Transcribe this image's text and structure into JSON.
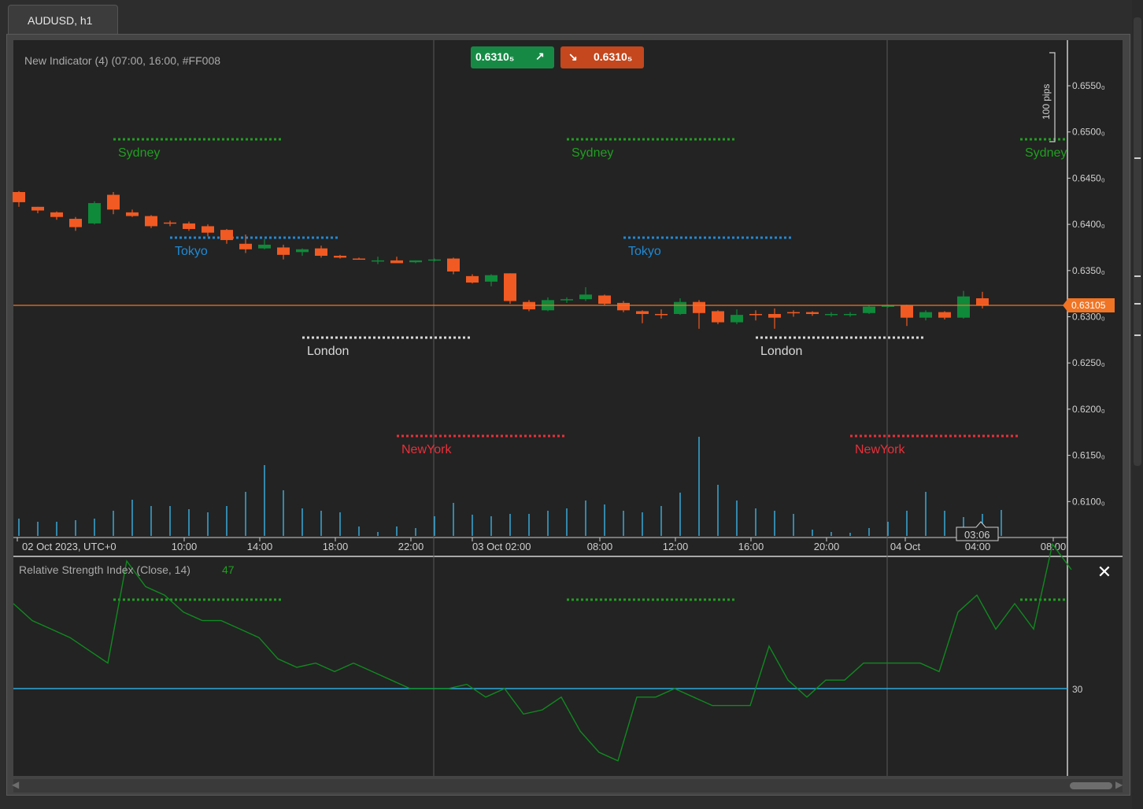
{
  "tab": {
    "label": "AUDUSD, h1"
  },
  "main_chart": {
    "indicator_label": "New Indicator (4) (07:00, 16:00, #FF008",
    "buy_price": "0.6310₅",
    "sell_price": "0.6310₅",
    "pips_label": "100 pips",
    "current_price_tag": "0.63105",
    "price_axis": [
      "0.6550₀",
      "0.6500₀",
      "0.6450₀",
      "0.6400₀",
      "0.6350₀",
      "0.6300₀",
      "0.6250₀",
      "0.6200₀",
      "0.6150₀",
      "0.6100₀"
    ],
    "time_axis": [
      "02 Oct 2023, UTC+0",
      "10:00",
      "14:00",
      "18:00",
      "22:00",
      "03 Oct 02:00",
      "08:00",
      "12:00",
      "16:00",
      "20:00",
      "04 Oct",
      "04:00",
      "08:00"
    ],
    "cursor_time": "03:06",
    "sessions": [
      {
        "label": "Sydney",
        "color": "#1fa01f"
      },
      {
        "label": "Tokyo",
        "color": "#1e8ad6"
      },
      {
        "label": "London",
        "color": "#d8d8d8"
      },
      {
        "label": "NewYork",
        "color": "#e8303a"
      },
      {
        "label": "Sydney",
        "color": "#1fa01f"
      },
      {
        "label": "Tokyo",
        "color": "#1e8ad6"
      },
      {
        "label": "London",
        "color": "#d8d8d8"
      },
      {
        "label": "NewYork",
        "color": "#e8303a"
      },
      {
        "label": "Sydney",
        "color": "#1fa01f"
      }
    ],
    "colors": {
      "bull": "#0f8a3a",
      "bear": "#f15a22",
      "volume": "#39a9d8",
      "price_line": "#f07424"
    }
  },
  "rsi_panel": {
    "title": "Relative Strength Index (Close, 14)",
    "value": "47",
    "level": "30",
    "close_icon": "close-icon"
  }
}
